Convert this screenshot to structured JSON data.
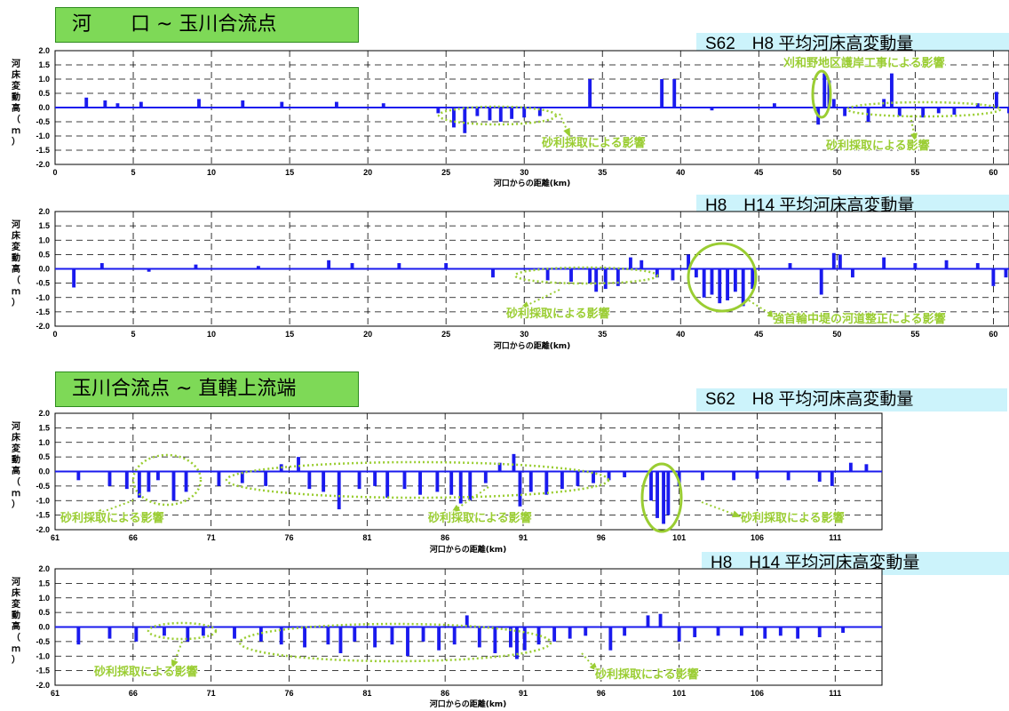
{
  "section_titles": [
    "河　　口 ~ 玉川合流点",
    "玉川合流点 ~ 直轄上流端"
  ],
  "colors": {
    "bar": "#1a1aee",
    "annotation": "#9acd32",
    "title_bg": "#7ed957",
    "label_bg": "#ccf3fb"
  },
  "chart_data": [
    {
      "type": "bar",
      "title": "S62　H8 平均河床高変動量",
      "xlabel": "河口からの距離(km)",
      "ylabel": "河床変動高（ｍ）",
      "xlim": [
        0,
        61
      ],
      "x_ticks": [
        0,
        5,
        10,
        15,
        20,
        25,
        30,
        35,
        40,
        45,
        50,
        55,
        60
      ],
      "ylim": [
        -2.0,
        2.0
      ],
      "y_ticks": [
        "2.0",
        "1.5",
        "1.0",
        "0.5",
        "0.0",
        "-0.5",
        "-1.0",
        "-1.5",
        "-2.0"
      ],
      "grid": true,
      "series": [
        {
          "x": [
            2.0,
            3.2,
            4.0,
            5.5,
            9.2,
            12.0,
            14.5,
            18.0,
            21.0,
            24.5,
            25.5,
            26.2,
            27.0,
            27.8,
            28.5,
            29.2,
            30.0,
            31.0,
            34.2,
            38.8,
            39.6,
            42.0,
            46.0,
            48.8,
            49.2,
            49.5,
            49.8,
            50.5,
            52.0,
            53.0,
            53.5,
            54.0,
            55.5,
            56.5,
            57.5,
            59.0,
            60.2,
            61.0
          ],
          "values": [
            0.35,
            0.25,
            0.15,
            0.2,
            0.3,
            0.25,
            0.2,
            0.2,
            0.15,
            -0.2,
            -0.7,
            -0.9,
            -0.3,
            -0.45,
            -0.5,
            -0.4,
            -0.35,
            -0.3,
            1.0,
            1.0,
            1.0,
            -0.1,
            0.15,
            -0.6,
            1.2,
            0.95,
            0.3,
            -0.3,
            -0.5,
            0.3,
            1.2,
            -0.3,
            -0.35,
            -0.2,
            -0.25,
            0.15,
            0.55,
            -0.2
          ]
        }
      ]
    },
    {
      "type": "bar",
      "title": "H8　H14 平均河床高変動量",
      "xlabel": "河口からの距離(km)",
      "ylabel": "河床変動高（ｍ）",
      "xlim": [
        0,
        61
      ],
      "x_ticks": [
        0,
        5,
        10,
        15,
        20,
        25,
        30,
        35,
        40,
        45,
        50,
        55,
        60
      ],
      "ylim": [
        -2.0,
        2.0
      ],
      "y_ticks": [
        "2.0",
        "1.5",
        "1.0",
        "0.5",
        "0.0",
        "-0.5",
        "-1.0",
        "-1.5",
        "-2.0"
      ],
      "grid": true,
      "series": [
        {
          "x": [
            1.2,
            3.0,
            6.0,
            9.0,
            13.0,
            17.5,
            19.0,
            22.0,
            25.0,
            28.0,
            31.5,
            33.0,
            34.2,
            34.6,
            35.2,
            36.0,
            36.8,
            37.5,
            38.5,
            39.5,
            40.5,
            41.0,
            41.5,
            42.0,
            42.5,
            43.0,
            43.5,
            44.0,
            44.6,
            47.0,
            49.0,
            49.8,
            50.2,
            51.0,
            53.0,
            55.0,
            57.0,
            59.0,
            60.0,
            60.8
          ],
          "values": [
            -0.65,
            0.2,
            -0.1,
            0.15,
            0.1,
            0.3,
            0.2,
            0.2,
            0.2,
            -0.3,
            -0.4,
            -0.45,
            -0.5,
            -0.8,
            -0.7,
            -0.6,
            0.4,
            0.3,
            -0.3,
            -0.4,
            0.5,
            -0.3,
            -1.0,
            -0.9,
            -1.2,
            -1.1,
            -0.8,
            -1.3,
            -0.7,
            0.2,
            -0.9,
            0.55,
            0.5,
            -0.3,
            0.4,
            0.2,
            0.3,
            0.2,
            -0.6,
            -0.3
          ]
        }
      ]
    },
    {
      "type": "bar",
      "title": "S62　H8 平均河床高変動量",
      "xlabel": "河口からの距離(km)",
      "ylabel": "河床変動高（ｍ）",
      "xlim": [
        61,
        114
      ],
      "x_ticks": [
        61,
        66,
        71,
        76,
        81,
        86,
        91,
        96,
        101,
        106,
        111
      ],
      "ylim": [
        -2.0,
        2.0
      ],
      "y_ticks": [
        "2.0",
        "1.5",
        "1.0",
        "0.5",
        "0.0",
        "-0.5",
        "-1.0",
        "-1.5",
        "-2.0"
      ],
      "grid": true,
      "series": [
        {
          "x": [
            62.5,
            64.5,
            65.6,
            66.4,
            67.0,
            67.6,
            68.6,
            69.4,
            71.5,
            73.0,
            74.5,
            75.5,
            76.6,
            77.3,
            78.2,
            79.2,
            80.5,
            81.5,
            82.3,
            83.4,
            84.4,
            85.5,
            86.4,
            87.0,
            87.6,
            88.6,
            89.5,
            90.4,
            90.8,
            91.5,
            92.5,
            93.5,
            94.5,
            95.5,
            96.5,
            97.5,
            99.2,
            99.6,
            100.0,
            100.3,
            101.0,
            102.5,
            104.5,
            106.0,
            108.0,
            110.0,
            110.8,
            112.0,
            113.0
          ],
          "values": [
            -0.3,
            -0.5,
            -0.6,
            -0.9,
            -0.7,
            -0.3,
            -1.0,
            -0.7,
            -0.5,
            -0.4,
            -0.5,
            0.25,
            0.5,
            -0.6,
            -0.7,
            -1.3,
            -0.6,
            -0.5,
            -0.9,
            -0.6,
            -0.8,
            -0.7,
            -0.8,
            -1.1,
            -1.0,
            -0.4,
            0.3,
            0.6,
            -1.2,
            -0.7,
            -0.8,
            -0.6,
            -0.5,
            -0.4,
            -0.3,
            -0.2,
            -1.0,
            -1.6,
            -1.8,
            -1.5,
            -0.5,
            -0.3,
            -0.3,
            -0.25,
            -0.3,
            -0.35,
            -0.5,
            0.3,
            0.25
          ]
        }
      ]
    },
    {
      "type": "bar",
      "title": "H8　H14 平均河床高変動量",
      "xlabel": "河口からの距離(km)",
      "ylabel": "河床変動高（ｍ）",
      "xlim": [
        61,
        114
      ],
      "x_ticks": [
        61,
        66,
        71,
        76,
        81,
        86,
        91,
        96,
        101,
        106,
        111
      ],
      "ylim": [
        -2.0,
        2.0
      ],
      "y_ticks": [
        "2.0",
        "1.5",
        "1.0",
        "0.5",
        "0.0",
        "-0.5",
        "-1.0",
        "-1.5",
        "-2.0"
      ],
      "grid": true,
      "series": [
        {
          "x": [
            62.5,
            64.5,
            66.2,
            68.0,
            69.5,
            70.5,
            72.5,
            74.2,
            75.5,
            77.0,
            78.5,
            79.3,
            80.2,
            81.5,
            82.6,
            83.6,
            84.6,
            85.6,
            86.6,
            87.4,
            88.2,
            89.2,
            90.2,
            90.6,
            91.1,
            92.0,
            93.0,
            94.0,
            95.0,
            96.6,
            97.5,
            99.0,
            99.8,
            101.0,
            102.0,
            103.5,
            105.0,
            106.5,
            107.5,
            108.6,
            110.0,
            111.5
          ],
          "values": [
            -0.6,
            -0.4,
            -0.5,
            -0.3,
            -0.5,
            -0.3,
            -0.4,
            -0.5,
            -0.6,
            -0.7,
            -0.6,
            -0.9,
            -0.5,
            -0.7,
            -0.6,
            -1.0,
            -0.5,
            -0.8,
            -0.6,
            0.4,
            -0.7,
            -0.9,
            -0.7,
            -1.1,
            -0.8,
            -0.6,
            -0.5,
            -0.4,
            -0.3,
            -0.8,
            -0.3,
            0.4,
            0.45,
            -0.5,
            -0.35,
            -0.3,
            -0.3,
            -0.4,
            -0.3,
            -0.4,
            -0.35,
            -0.2
          ]
        }
      ]
    }
  ],
  "annotations": [
    {
      "chart": 0,
      "text": "砂利採取による影響"
    },
    {
      "chart": 0,
      "text": "砂利採取による影響"
    },
    {
      "chart": 0,
      "text": "刈和野地区護岸工事による影響"
    },
    {
      "chart": 1,
      "text": "砂利採取による影響"
    },
    {
      "chart": 1,
      "text": "強首輪中堤の河道整正による影響"
    },
    {
      "chart": 2,
      "text": "砂利採取による影響"
    },
    {
      "chart": 2,
      "text": "砂利採取による影響"
    },
    {
      "chart": 2,
      "text": "砂利採取による影響"
    },
    {
      "chart": 3,
      "text": "砂利採取による影響"
    },
    {
      "chart": 3,
      "text": "砂利採取による影響"
    }
  ]
}
